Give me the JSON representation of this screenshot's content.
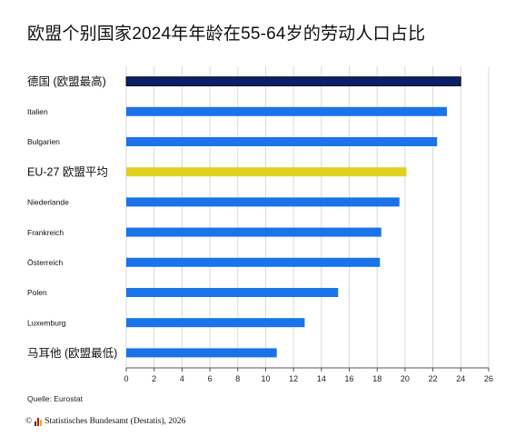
{
  "header": {
    "title": "欧盟个别国家2024年年龄在55-64岁的劳动人口占比"
  },
  "chart_data": {
    "type": "bar",
    "orientation": "horizontal",
    "title": "欧盟个别国家2024年年龄在55-64岁的劳动人口占比",
    "xlabel": "",
    "ylabel": "",
    "xlim": [
      0,
      26
    ],
    "xticks": [
      0,
      2,
      4,
      6,
      8,
      10,
      12,
      14,
      16,
      18,
      20,
      22,
      24,
      26
    ],
    "grid": true,
    "categories": [
      "德国 (欧盟最高)",
      "Italien",
      "Bulgarien",
      "EU-27  欧盟平均",
      "Niederlande",
      "Frankreich",
      "Österreich",
      "Polen",
      "Luxemburg",
      "马耳他 (欧盟最低)"
    ],
    "values": [
      24.0,
      23.0,
      22.3,
      20.1,
      19.6,
      18.3,
      18.2,
      15.2,
      12.8,
      10.8
    ],
    "bar_colors": [
      "#0a1f6b",
      "#1a73e8",
      "#1a73e8",
      "#e0d020",
      "#1a73e8",
      "#1a73e8",
      "#1a73e8",
      "#1a73e8",
      "#1a73e8",
      "#1a73e8"
    ]
  },
  "source": "Quelle: Eurostat",
  "footer": {
    "copyright": "©",
    "text": "Statistisches Bundesamt (Destatis), 2026"
  }
}
